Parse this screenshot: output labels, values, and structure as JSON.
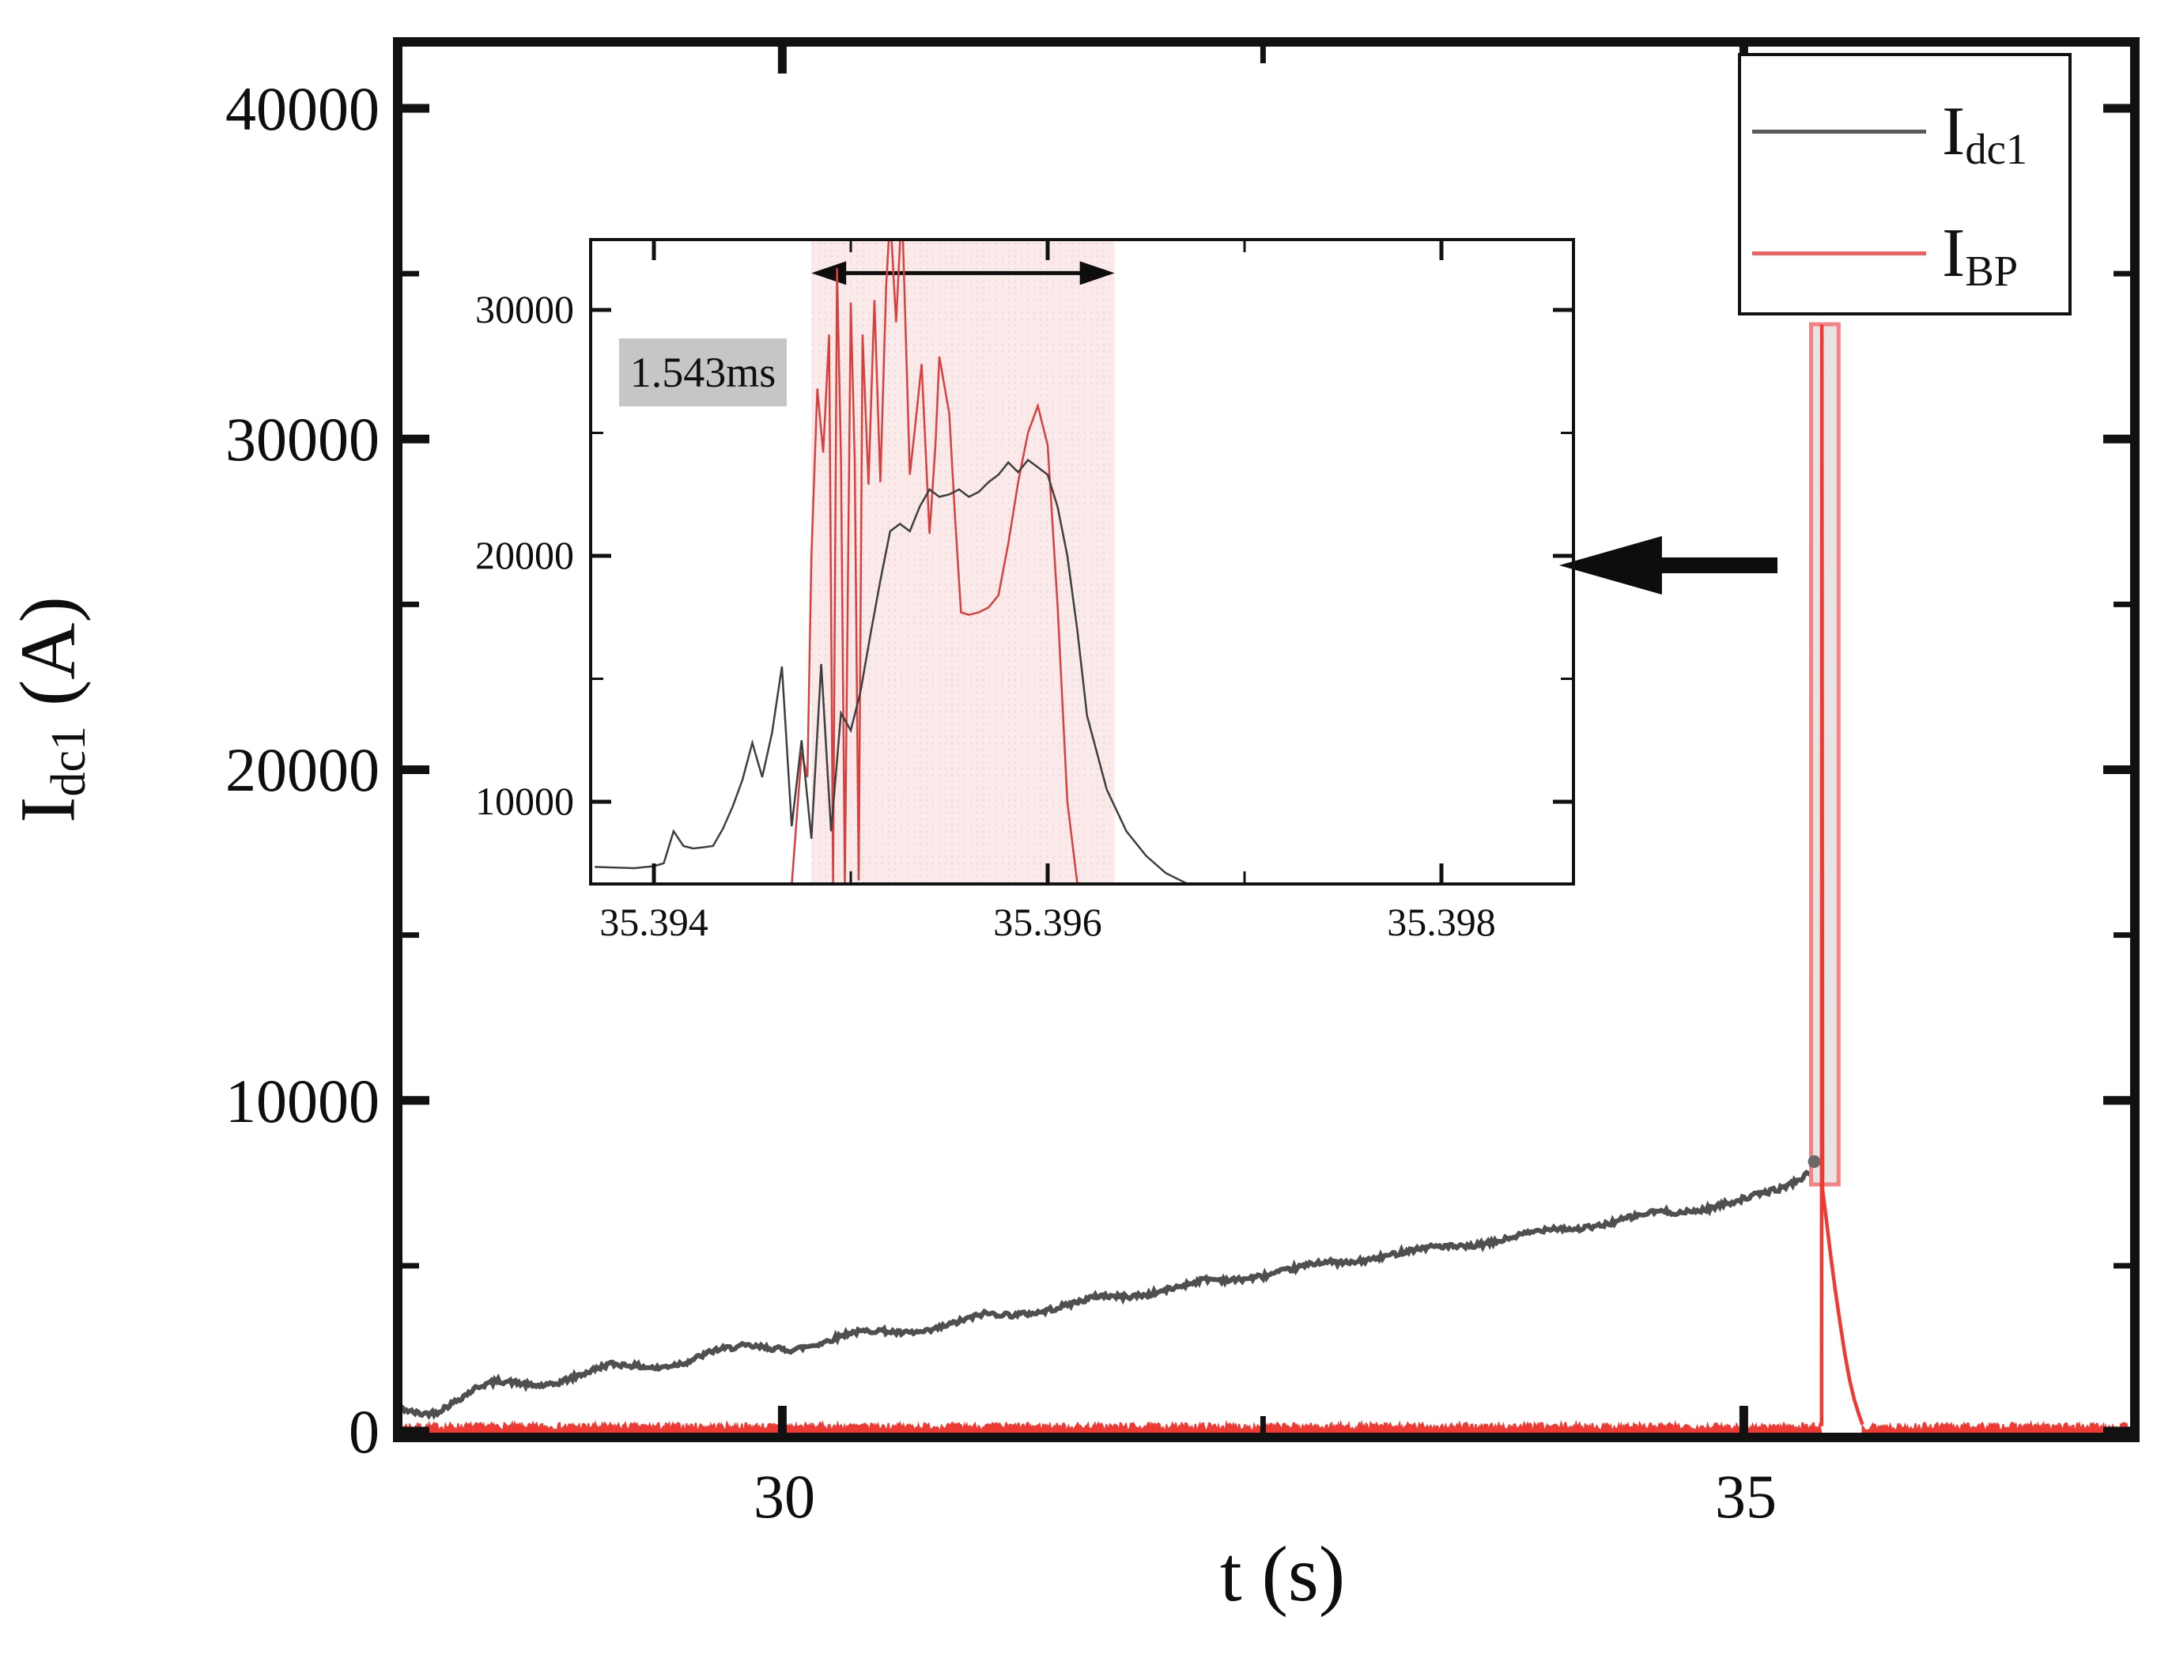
{
  "figure": {
    "background": "#ffffff",
    "ylabel": {
      "base": "I",
      "sub": "dc1",
      "rest": " (A)"
    },
    "xlabel": {
      "base": "t",
      "rest": " (s)"
    },
    "duration_annotation": "1.543ms",
    "legend": {
      "position": "top-right",
      "entries": [
        {
          "base": "I",
          "sub": "dc1",
          "color": "#595959"
        },
        {
          "base": "I",
          "sub": "BP",
          "color": "#f25f5f"
        }
      ]
    }
  },
  "chart_data": [
    {
      "id": "main",
      "type": "line",
      "title": "",
      "xlabel": "t (s)",
      "ylabel": "I_dc1 (A)",
      "xlim": [
        28.0,
        37.03
      ],
      "ylim": [
        -200,
        42200
      ],
      "grid": false,
      "xticks": [
        30,
        35
      ],
      "xtick_labels": [
        "30",
        "35"
      ],
      "xticks_minor": [
        32.5
      ],
      "yticks": [
        0,
        10000,
        20000,
        30000,
        40000
      ],
      "ytick_labels": [
        "40000",
        "30000",
        "20000",
        "10000",
        "0"
      ],
      "yticks_minor": [
        5000,
        15000,
        25000,
        35000
      ],
      "series": [
        {
          "name": "Idc1",
          "color": "#4f4f4f",
          "style": "noisy-ramp",
          "noise_amp": 150,
          "points": [
            [
              28.0,
              730
            ],
            [
              28.06,
              600
            ],
            [
              28.12,
              520
            ],
            [
              28.2,
              560
            ],
            [
              28.3,
              900
            ],
            [
              28.42,
              1350
            ],
            [
              28.52,
              1520
            ],
            [
              28.6,
              1480
            ],
            [
              28.7,
              1370
            ],
            [
              28.8,
              1390
            ],
            [
              28.95,
              1700
            ],
            [
              29.1,
              2030
            ],
            [
              29.2,
              2000
            ],
            [
              29.35,
              1900
            ],
            [
              29.5,
              2080
            ],
            [
              29.65,
              2450
            ],
            [
              29.8,
              2580
            ],
            [
              29.92,
              2520
            ],
            [
              30.05,
              2450
            ],
            [
              30.2,
              2650
            ],
            [
              30.35,
              2980
            ],
            [
              30.5,
              3050
            ],
            [
              30.62,
              2960
            ],
            [
              30.75,
              3000
            ],
            [
              30.9,
              3280
            ],
            [
              31.05,
              3560
            ],
            [
              31.2,
              3510
            ],
            [
              31.35,
              3600
            ],
            [
              31.5,
              3850
            ],
            [
              31.65,
              4100
            ],
            [
              31.78,
              4060
            ],
            [
              31.9,
              4120
            ],
            [
              32.05,
              4350
            ],
            [
              32.2,
              4600
            ],
            [
              32.35,
              4560
            ],
            [
              32.5,
              4680
            ],
            [
              32.65,
              4900
            ],
            [
              32.8,
              5120
            ],
            [
              32.95,
              5080
            ],
            [
              33.1,
              5230
            ],
            [
              33.25,
              5460
            ],
            [
              33.4,
              5600
            ],
            [
              33.55,
              5560
            ],
            [
              33.7,
              5700
            ],
            [
              33.85,
              5950
            ],
            [
              34.0,
              6150
            ],
            [
              34.12,
              6100
            ],
            [
              34.25,
              6200
            ],
            [
              34.4,
              6450
            ],
            [
              34.55,
              6650
            ],
            [
              34.68,
              6600
            ],
            [
              34.8,
              6700
            ],
            [
              34.95,
              6950
            ],
            [
              35.1,
              7200
            ],
            [
              35.2,
              7350
            ],
            [
              35.3,
              7650
            ],
            [
              35.38,
              7950
            ],
            [
              35.402,
              8150
            ]
          ]
        },
        {
          "name": "IBP",
          "color": "#ee3a32",
          "baseline_noise": {
            "min": 20,
            "max": 255,
            "segment1": [
              28.0,
              35.4045
            ],
            "segment2": [
              35.617,
              37.03
            ]
          },
          "spike": [
            [
              35.4045,
              150
            ],
            [
              35.406,
              33460
            ],
            [
              35.4095,
              7300
            ],
            [
              35.425,
              6600
            ],
            [
              35.45,
              5400
            ],
            [
              35.475,
              4300
            ],
            [
              35.5,
              3300
            ],
            [
              35.525,
              2350
            ],
            [
              35.55,
              1550
            ],
            [
              35.575,
              950
            ],
            [
              35.6,
              480
            ],
            [
              35.617,
              200
            ]
          ]
        }
      ],
      "highlight_rect": {
        "t0": 35.35,
        "t1": 35.493,
        "v0": 7460,
        "v1": 33470,
        "fill": "#e8e4e3",
        "stroke": "#f58282"
      },
      "pointer_arrow": {
        "tip_t": 34.04,
        "tail_t": 35.175,
        "v": 26180,
        "color": "#0d0d0d"
      }
    },
    {
      "id": "inset",
      "type": "line",
      "title": "",
      "xlabel": "t (s)",
      "ylabel": "I (A)",
      "xlim": [
        35.3937,
        35.3987
      ],
      "ylim": [
        6650,
        32900
      ],
      "grid": false,
      "xticks": [
        35.394,
        35.396,
        35.398
      ],
      "xtick_labels": [
        "35.394",
        "35.396",
        "35.398"
      ],
      "xticks_minor": [
        35.395,
        35.397
      ],
      "yticks": [
        10000,
        20000,
        30000
      ],
      "ytick_labels": [
        "30000",
        "20000",
        "10000"
      ],
      "yticks_minor": [
        15000,
        25000
      ],
      "shaded_region": {
        "t0": 35.3948,
        "t1": 35.39634,
        "duration_ms": 1.543,
        "duration_label": "1.543ms",
        "fill": "#fbeaea"
      },
      "span_arrow": {
        "t0": 35.3948,
        "t1": 35.39634,
        "v": 31500,
        "color": "#0d0d0d"
      },
      "series": [
        {
          "name": "Idc1",
          "color": "#3f3f3f",
          "points": [
            [
              35.3937,
              7350
            ],
            [
              35.3939,
              7300
            ],
            [
              35.394,
              7380
            ],
            [
              35.39405,
              7500
            ],
            [
              35.3941,
              8800
            ],
            [
              35.39415,
              8200
            ],
            [
              35.3942,
              8100
            ],
            [
              35.3943,
              8200
            ],
            [
              35.39435,
              8900
            ],
            [
              35.3944,
              9800
            ],
            [
              35.39445,
              10900
            ],
            [
              35.3945,
              12400
            ],
            [
              35.39455,
              11000
            ],
            [
              35.3946,
              12800
            ],
            [
              35.39465,
              15500
            ],
            [
              35.3947,
              9000
            ],
            [
              35.39475,
              12500
            ],
            [
              35.3948,
              8500
            ],
            [
              35.39485,
              15600
            ],
            [
              35.3949,
              8800
            ],
            [
              35.39495,
              13600
            ],
            [
              35.395,
              12900
            ],
            [
              35.39505,
              14500
            ],
            [
              35.3951,
              16800
            ],
            [
              35.39515,
              19000
            ],
            [
              35.3952,
              21000
            ],
            [
              35.39525,
              21300
            ],
            [
              35.3953,
              21000
            ],
            [
              35.39535,
              22000
            ],
            [
              35.3954,
              22700
            ],
            [
              35.39545,
              22400
            ],
            [
              35.3955,
              22500
            ],
            [
              35.39555,
              22700
            ],
            [
              35.3956,
              22400
            ],
            [
              35.39565,
              22600
            ],
            [
              35.3957,
              23000
            ],
            [
              35.39575,
              23300
            ],
            [
              35.3958,
              23800
            ],
            [
              35.39585,
              23400
            ],
            [
              35.3959,
              23900
            ],
            [
              35.39595,
              23600
            ],
            [
              35.396,
              23300
            ],
            [
              35.39605,
              22000
            ],
            [
              35.3961,
              20000
            ],
            [
              35.39615,
              17000
            ],
            [
              35.3962,
              13500
            ],
            [
              35.3963,
              10500
            ],
            [
              35.3964,
              8800
            ],
            [
              35.3965,
              7800
            ],
            [
              35.3966,
              7100
            ],
            [
              35.3967,
              6700
            ],
            [
              35.39675,
              6600
            ]
          ]
        },
        {
          "name": "IBP",
          "color": "#d84040",
          "points": [
            [
              35.3947,
              6600
            ],
            [
              35.39475,
              12000
            ],
            [
              35.39478,
              11000
            ],
            [
              35.3948,
              20000
            ],
            [
              35.39483,
              26800
            ],
            [
              35.39486,
              24200
            ],
            [
              35.39489,
              29000
            ],
            [
              35.39491,
              6700
            ],
            [
              35.39493,
              31700
            ],
            [
              35.39495,
              24000
            ],
            [
              35.39497,
              6700
            ],
            [
              35.395,
              30300
            ],
            [
              35.39502,
              23900
            ],
            [
              35.39504,
              6800
            ],
            [
              35.39506,
              29000
            ],
            [
              35.39509,
              22900
            ],
            [
              35.39512,
              30400
            ],
            [
              35.39515,
              23000
            ],
            [
              35.39518,
              31000
            ],
            [
              35.3952,
              33900
            ],
            [
              35.39523,
              29500
            ],
            [
              35.39526,
              34300
            ],
            [
              35.3953,
              23300
            ],
            [
              35.39533,
              25500
            ],
            [
              35.39536,
              27800
            ],
            [
              35.3954,
              20900
            ],
            [
              35.39543,
              24500
            ],
            [
              35.39545,
              28100
            ],
            [
              35.3955,
              25800
            ],
            [
              35.39553,
              21500
            ],
            [
              35.39556,
              17700
            ],
            [
              35.3956,
              17600
            ],
            [
              35.39565,
              17700
            ],
            [
              35.3957,
              17900
            ],
            [
              35.39575,
              18400
            ],
            [
              35.3958,
              20500
            ],
            [
              35.39585,
              23000
            ],
            [
              35.3959,
              25000
            ],
            [
              35.39595,
              26100
            ],
            [
              35.396,
              24500
            ],
            [
              35.39605,
              18000
            ],
            [
              35.3961,
              10000
            ],
            [
              35.39615,
              6700
            ],
            [
              35.3962,
              6600
            ]
          ]
        }
      ]
    }
  ]
}
